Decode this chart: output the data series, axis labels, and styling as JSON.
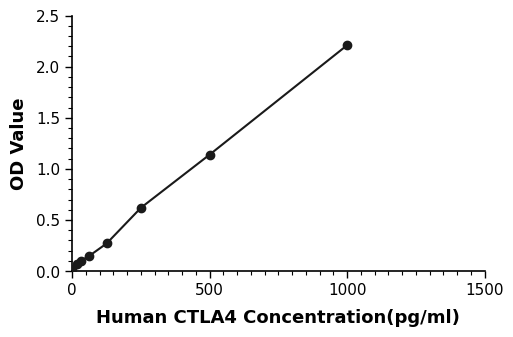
{
  "x": [
    0,
    15.625,
    31.25,
    62.5,
    125,
    250,
    500,
    1000
  ],
  "y": [
    0.02,
    0.07,
    0.1,
    0.15,
    0.27,
    0.62,
    1.14,
    2.21
  ],
  "line_color": "#1a1a1a",
  "marker_color": "#1a1a1a",
  "marker_style": "o",
  "marker_size": 6,
  "line_width": 1.5,
  "xlabel": "Human CTLA4 Concentration(pg/ml)",
  "ylabel": "OD Value",
  "xlim": [
    0,
    1500
  ],
  "ylim": [
    0.0,
    2.5
  ],
  "xticks": [
    0,
    500,
    1000,
    1500
  ],
  "yticks": [
    0.0,
    0.5,
    1.0,
    1.5,
    2.0,
    2.5
  ],
  "xlabel_fontsize": 13,
  "ylabel_fontsize": 13,
  "tick_fontsize": 11,
  "background_color": "#ffffff",
  "spine_color": "#000000"
}
